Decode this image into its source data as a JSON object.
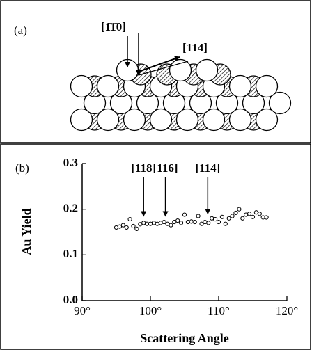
{
  "diagram": {
    "label": "(a)",
    "direction_labels": [
      "[1̄1̄0]",
      "[114]"
    ]
  },
  "chart_data": {
    "type": "scatter",
    "panel_label": "(b)",
    "xlabel": "Scattering Angle",
    "ylabel": "Au Yield",
    "xlim": [
      90,
      120
    ],
    "xticks": [
      {
        "value": 90,
        "label": "90°"
      },
      {
        "value": 100,
        "label": "100°"
      },
      {
        "value": 110,
        "label": "110°"
      },
      {
        "value": 120,
        "label": "120°"
      }
    ],
    "ylim": [
      0,
      0.3
    ],
    "yticks": [
      {
        "value": 0,
        "label": "0.0"
      },
      0.1,
      0.2,
      0.3
    ],
    "marker": "open-circle",
    "color": "#000000",
    "x": [
      95.0,
      95.5,
      96.0,
      96.5,
      97.0,
      97.5,
      98.0,
      98.5,
      99.0,
      99.5,
      100.0,
      100.5,
      101.0,
      101.5,
      102.0,
      102.5,
      103.0,
      103.5,
      104.0,
      104.5,
      105.0,
      105.5,
      106.0,
      106.5,
      107.0,
      107.5,
      108.0,
      108.5,
      109.0,
      109.5,
      110.0,
      110.5,
      111.0,
      111.5,
      112.0,
      112.5,
      113.0,
      113.5,
      114.0,
      114.5,
      115.0,
      115.5,
      116.0,
      116.5,
      117.0
    ],
    "values": [
      0.16,
      0.162,
      0.165,
      0.16,
      0.178,
      0.163,
      0.157,
      0.167,
      0.17,
      0.168,
      0.168,
      0.17,
      0.168,
      0.17,
      0.172,
      0.168,
      0.165,
      0.172,
      0.175,
      0.17,
      0.188,
      0.172,
      0.173,
      0.172,
      0.185,
      0.168,
      0.172,
      0.17,
      0.18,
      0.178,
      0.172,
      0.183,
      0.168,
      0.18,
      0.185,
      0.192,
      0.2,
      0.18,
      0.188,
      0.19,
      0.183,
      0.193,
      0.19,
      0.182,
      0.182
    ],
    "annotations": [
      {
        "text": "[118]",
        "x": 99,
        "y": 0.185
      },
      {
        "text": "[116]",
        "x": 102.2,
        "y": 0.185
      },
      {
        "text": "[114]",
        "x": 108.4,
        "y": 0.19
      }
    ]
  }
}
